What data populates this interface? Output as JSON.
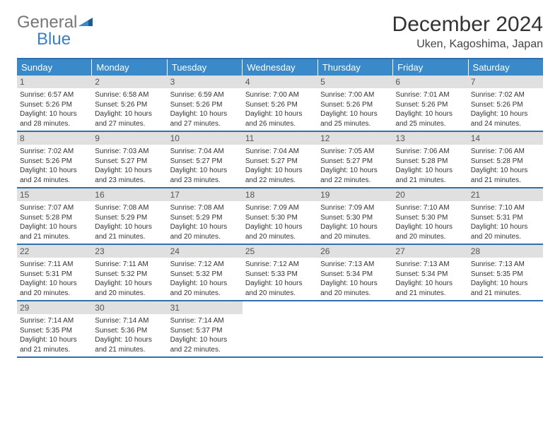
{
  "logo": {
    "general": "General",
    "blue": "Blue"
  },
  "title": "December 2024",
  "location": "Uken, Kagoshima, Japan",
  "colors": {
    "header_bg": "#3a8ac9",
    "header_text": "#ffffff",
    "rule": "#2e6fae",
    "daynum_bg": "#e0e0e0",
    "body_text": "#333333",
    "logo_gray": "#777777",
    "logo_blue": "#3a7fc4"
  },
  "day_headers": [
    "Sunday",
    "Monday",
    "Tuesday",
    "Wednesday",
    "Thursday",
    "Friday",
    "Saturday"
  ],
  "weeks": [
    [
      {
        "n": "1",
        "sr": "Sunrise: 6:57 AM",
        "ss": "Sunset: 5:26 PM",
        "dl": "Daylight: 10 hours and 28 minutes."
      },
      {
        "n": "2",
        "sr": "Sunrise: 6:58 AM",
        "ss": "Sunset: 5:26 PM",
        "dl": "Daylight: 10 hours and 27 minutes."
      },
      {
        "n": "3",
        "sr": "Sunrise: 6:59 AM",
        "ss": "Sunset: 5:26 PM",
        "dl": "Daylight: 10 hours and 27 minutes."
      },
      {
        "n": "4",
        "sr": "Sunrise: 7:00 AM",
        "ss": "Sunset: 5:26 PM",
        "dl": "Daylight: 10 hours and 26 minutes."
      },
      {
        "n": "5",
        "sr": "Sunrise: 7:00 AM",
        "ss": "Sunset: 5:26 PM",
        "dl": "Daylight: 10 hours and 25 minutes."
      },
      {
        "n": "6",
        "sr": "Sunrise: 7:01 AM",
        "ss": "Sunset: 5:26 PM",
        "dl": "Daylight: 10 hours and 25 minutes."
      },
      {
        "n": "7",
        "sr": "Sunrise: 7:02 AM",
        "ss": "Sunset: 5:26 PM",
        "dl": "Daylight: 10 hours and 24 minutes."
      }
    ],
    [
      {
        "n": "8",
        "sr": "Sunrise: 7:02 AM",
        "ss": "Sunset: 5:26 PM",
        "dl": "Daylight: 10 hours and 24 minutes."
      },
      {
        "n": "9",
        "sr": "Sunrise: 7:03 AM",
        "ss": "Sunset: 5:27 PM",
        "dl": "Daylight: 10 hours and 23 minutes."
      },
      {
        "n": "10",
        "sr": "Sunrise: 7:04 AM",
        "ss": "Sunset: 5:27 PM",
        "dl": "Daylight: 10 hours and 23 minutes."
      },
      {
        "n": "11",
        "sr": "Sunrise: 7:04 AM",
        "ss": "Sunset: 5:27 PM",
        "dl": "Daylight: 10 hours and 22 minutes."
      },
      {
        "n": "12",
        "sr": "Sunrise: 7:05 AM",
        "ss": "Sunset: 5:27 PM",
        "dl": "Daylight: 10 hours and 22 minutes."
      },
      {
        "n": "13",
        "sr": "Sunrise: 7:06 AM",
        "ss": "Sunset: 5:28 PM",
        "dl": "Daylight: 10 hours and 21 minutes."
      },
      {
        "n": "14",
        "sr": "Sunrise: 7:06 AM",
        "ss": "Sunset: 5:28 PM",
        "dl": "Daylight: 10 hours and 21 minutes."
      }
    ],
    [
      {
        "n": "15",
        "sr": "Sunrise: 7:07 AM",
        "ss": "Sunset: 5:28 PM",
        "dl": "Daylight: 10 hours and 21 minutes."
      },
      {
        "n": "16",
        "sr": "Sunrise: 7:08 AM",
        "ss": "Sunset: 5:29 PM",
        "dl": "Daylight: 10 hours and 21 minutes."
      },
      {
        "n": "17",
        "sr": "Sunrise: 7:08 AM",
        "ss": "Sunset: 5:29 PM",
        "dl": "Daylight: 10 hours and 20 minutes."
      },
      {
        "n": "18",
        "sr": "Sunrise: 7:09 AM",
        "ss": "Sunset: 5:30 PM",
        "dl": "Daylight: 10 hours and 20 minutes."
      },
      {
        "n": "19",
        "sr": "Sunrise: 7:09 AM",
        "ss": "Sunset: 5:30 PM",
        "dl": "Daylight: 10 hours and 20 minutes."
      },
      {
        "n": "20",
        "sr": "Sunrise: 7:10 AM",
        "ss": "Sunset: 5:30 PM",
        "dl": "Daylight: 10 hours and 20 minutes."
      },
      {
        "n": "21",
        "sr": "Sunrise: 7:10 AM",
        "ss": "Sunset: 5:31 PM",
        "dl": "Daylight: 10 hours and 20 minutes."
      }
    ],
    [
      {
        "n": "22",
        "sr": "Sunrise: 7:11 AM",
        "ss": "Sunset: 5:31 PM",
        "dl": "Daylight: 10 hours and 20 minutes."
      },
      {
        "n": "23",
        "sr": "Sunrise: 7:11 AM",
        "ss": "Sunset: 5:32 PM",
        "dl": "Daylight: 10 hours and 20 minutes."
      },
      {
        "n": "24",
        "sr": "Sunrise: 7:12 AM",
        "ss": "Sunset: 5:32 PM",
        "dl": "Daylight: 10 hours and 20 minutes."
      },
      {
        "n": "25",
        "sr": "Sunrise: 7:12 AM",
        "ss": "Sunset: 5:33 PM",
        "dl": "Daylight: 10 hours and 20 minutes."
      },
      {
        "n": "26",
        "sr": "Sunrise: 7:13 AM",
        "ss": "Sunset: 5:34 PM",
        "dl": "Daylight: 10 hours and 20 minutes."
      },
      {
        "n": "27",
        "sr": "Sunrise: 7:13 AM",
        "ss": "Sunset: 5:34 PM",
        "dl": "Daylight: 10 hours and 21 minutes."
      },
      {
        "n": "28",
        "sr": "Sunrise: 7:13 AM",
        "ss": "Sunset: 5:35 PM",
        "dl": "Daylight: 10 hours and 21 minutes."
      }
    ],
    [
      {
        "n": "29",
        "sr": "Sunrise: 7:14 AM",
        "ss": "Sunset: 5:35 PM",
        "dl": "Daylight: 10 hours and 21 minutes."
      },
      {
        "n": "30",
        "sr": "Sunrise: 7:14 AM",
        "ss": "Sunset: 5:36 PM",
        "dl": "Daylight: 10 hours and 21 minutes."
      },
      {
        "n": "31",
        "sr": "Sunrise: 7:14 AM",
        "ss": "Sunset: 5:37 PM",
        "dl": "Daylight: 10 hours and 22 minutes."
      },
      null,
      null,
      null,
      null
    ]
  ]
}
